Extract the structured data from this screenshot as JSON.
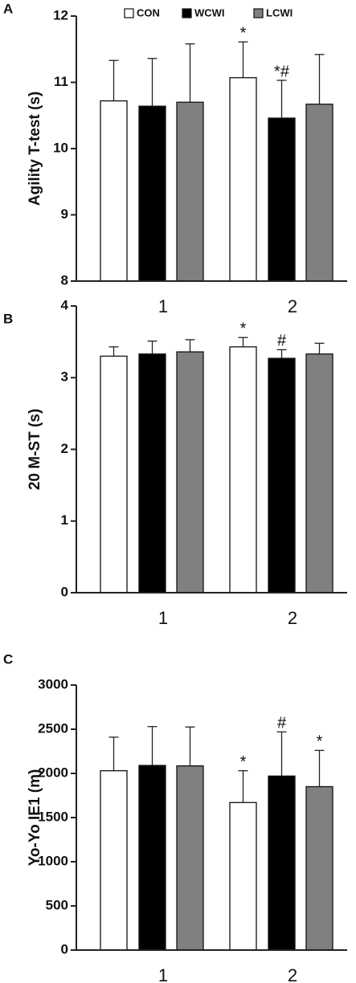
{
  "chart_data": [
    {
      "type": "bar",
      "panel": "A",
      "ylabel": "Agility T-test (s)",
      "categories": [
        "1",
        "2"
      ],
      "ylim": [
        8,
        12
      ],
      "yticks": [
        8,
        9,
        10,
        11,
        12
      ],
      "series": [
        {
          "name": "CON",
          "color": "#ffffff",
          "values": [
            10.72,
            11.07
          ],
          "errors": [
            0.61,
            0.54
          ],
          "labels": [
            null,
            "*"
          ]
        },
        {
          "name": "WCWI",
          "color": "#000000",
          "values": [
            10.64,
            10.46
          ],
          "errors": [
            0.72,
            0.57
          ],
          "labels": [
            null,
            "*#"
          ]
        },
        {
          "name": "LCWI",
          "color": "#808080",
          "values": [
            10.7,
            10.67
          ],
          "errors": [
            0.88,
            0.75
          ],
          "labels": [
            null,
            null
          ]
        }
      ]
    },
    {
      "type": "bar",
      "panel": "B",
      "ylabel": "20 M-ST (s)",
      "categories": [
        "1",
        "2"
      ],
      "ylim": [
        0,
        4
      ],
      "yticks": [
        0,
        1,
        2,
        3,
        4
      ],
      "series": [
        {
          "color": "#ffffff",
          "values": [
            3.3,
            3.43
          ],
          "errors": [
            0.13,
            0.13
          ],
          "labels": [
            null,
            "*"
          ]
        },
        {
          "color": "#000000",
          "values": [
            3.33,
            3.27
          ],
          "errors": [
            0.18,
            0.12
          ],
          "labels": [
            null,
            "#"
          ]
        },
        {
          "color": "#808080",
          "values": [
            3.36,
            3.33
          ],
          "errors": [
            0.17,
            0.15
          ],
          "labels": [
            null,
            null
          ]
        }
      ]
    },
    {
      "type": "bar",
      "panel": "C",
      "ylabel": "Yo-Yo IE1 (m)",
      "categories": [
        "1",
        "2"
      ],
      "ylim": [
        0,
        3000
      ],
      "yticks": [
        0,
        500,
        1000,
        1500,
        2000,
        2500,
        3000
      ],
      "series": [
        {
          "color": "#ffffff",
          "values": [
            2030,
            1670
          ],
          "errors": [
            380,
            360
          ],
          "labels": [
            null,
            "*"
          ]
        },
        {
          "color": "#000000",
          "values": [
            2090,
            1970
          ],
          "errors": [
            440,
            500
          ],
          "labels": [
            null,
            "#"
          ]
        },
        {
          "color": "#808080",
          "values": [
            2085,
            1850
          ],
          "errors": [
            440,
            410
          ],
          "labels": [
            null,
            "*"
          ]
        }
      ]
    }
  ]
}
